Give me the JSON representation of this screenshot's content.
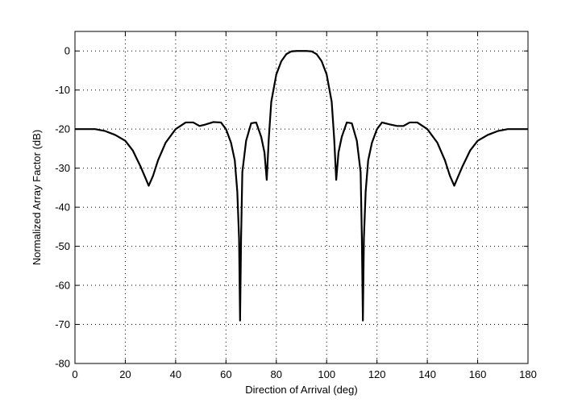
{
  "chart_data": {
    "type": "line",
    "title": "",
    "xlabel": "Direction of Arrival (deg)",
    "ylabel": "Normalized Array Factor (dB)",
    "xlim": [
      0,
      180
    ],
    "ylim": [
      -80,
      5
    ],
    "x_ticks": [
      0,
      20,
      40,
      60,
      80,
      100,
      120,
      140,
      160,
      180
    ],
    "x_tick_labels": [
      "0",
      "20",
      "40",
      "60",
      "80",
      "100",
      "120",
      "140",
      "160",
      "180"
    ],
    "y_ticks": [
      0,
      -10,
      -20,
      -30,
      -40,
      -50,
      -60,
      -70,
      -80
    ],
    "y_tick_labels": [
      "0",
      "-10",
      "-20",
      "-30",
      "-40",
      "-50",
      "-60",
      "-70",
      "-80"
    ],
    "grid": true,
    "legend": "none",
    "series": [
      {
        "color": "#000000",
        "x": [
          0,
          5,
          8,
          12,
          16,
          20,
          23,
          26,
          28,
          29.3,
          31,
          33,
          36,
          40,
          44,
          47,
          49.5,
          52,
          55,
          58,
          60,
          62,
          63.5,
          64.5,
          65.2,
          65.6,
          66,
          66.5,
          68,
          70,
          72,
          74,
          75.3,
          76.2,
          77,
          78,
          80,
          82,
          84,
          86,
          88,
          90,
          92,
          94,
          96,
          98,
          100,
          102,
          103,
          103.8,
          104.7,
          106,
          108,
          110,
          112,
          113.5,
          114,
          114.4,
          114.8,
          115.5,
          116.5,
          118,
          120,
          122,
          125,
          128,
          130.5,
          133,
          136,
          140,
          144,
          147,
          149,
          150.7,
          152,
          154,
          157,
          160,
          164,
          168,
          172,
          175,
          180
        ],
        "y": [
          -20,
          -20,
          -20,
          -20.5,
          -21.5,
          -23,
          -25.5,
          -29.5,
          -32.5,
          -34.5,
          -32,
          -28,
          -23.5,
          -20,
          -18.3,
          -18.3,
          -19.2,
          -18.8,
          -18.2,
          -18.3,
          -20,
          -23.5,
          -28,
          -36,
          -48,
          -69,
          -48,
          -31,
          -23,
          -18.5,
          -18.3,
          -22,
          -26,
          -33,
          -22.5,
          -13,
          -6,
          -2.6,
          -0.8,
          -0.1,
          0,
          0,
          0,
          -0.1,
          -0.8,
          -2.6,
          -6,
          -13,
          -22.5,
          -33,
          -26,
          -22,
          -18.3,
          -18.5,
          -23,
          -31,
          -48,
          -69,
          -48,
          -36,
          -28,
          -23.5,
          -20,
          -18.3,
          -18.8,
          -19.2,
          -19.2,
          -18.3,
          -18.3,
          -20,
          -23.5,
          -28,
          -32,
          -34.5,
          -32.5,
          -29.5,
          -25.5,
          -23,
          -21.5,
          -20.5,
          -20,
          -20,
          -20
        ]
      }
    ]
  }
}
